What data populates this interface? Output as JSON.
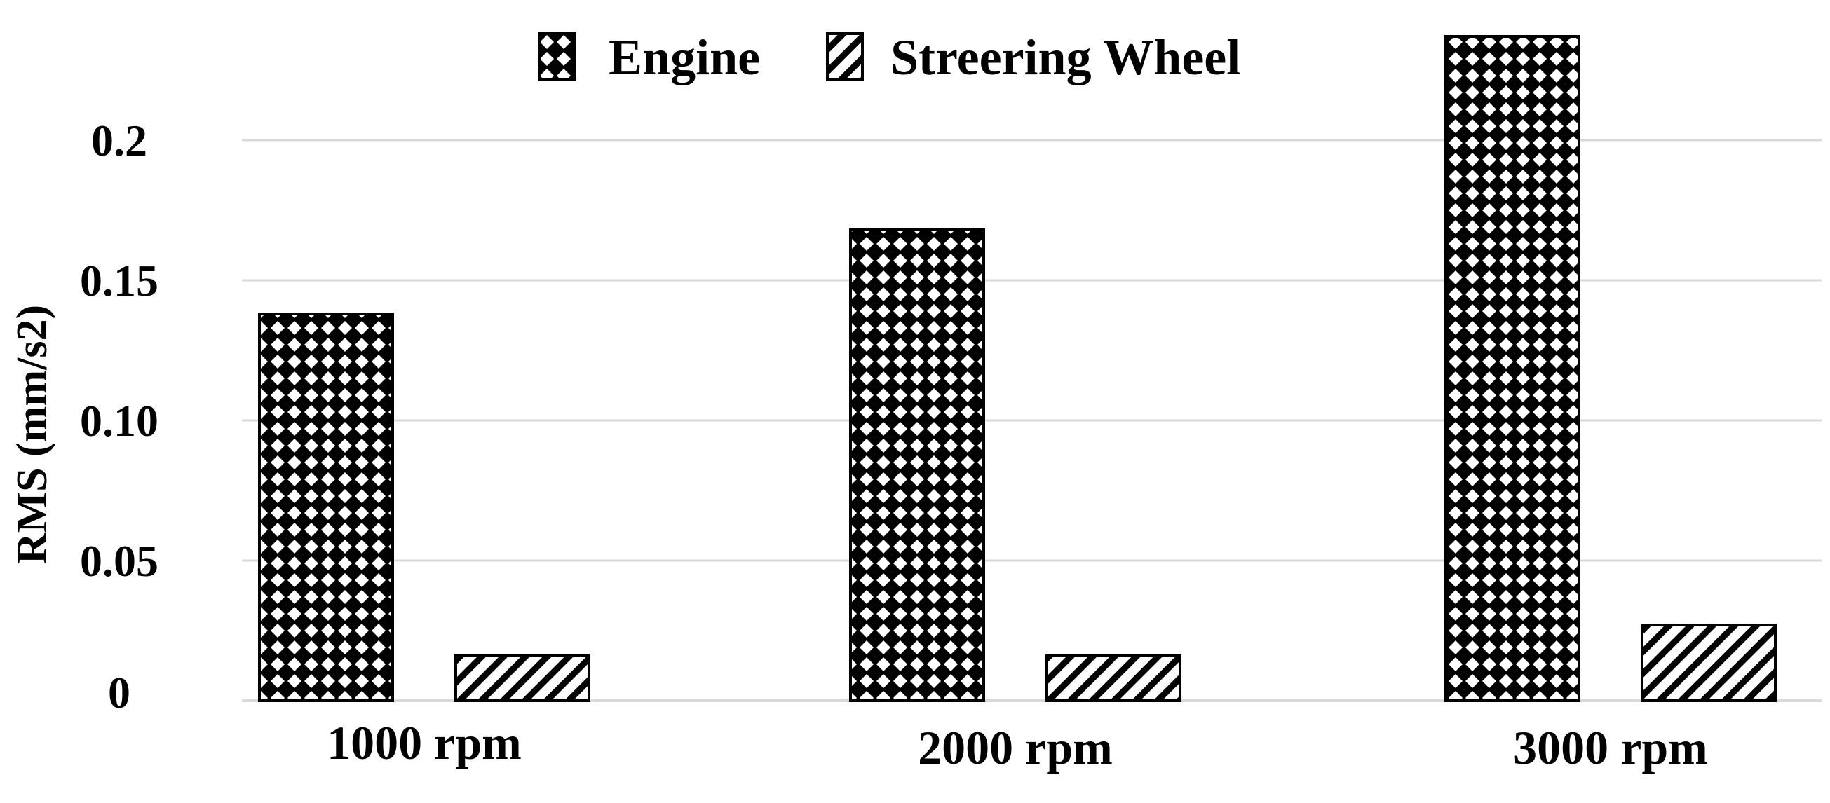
{
  "chart_data": {
    "type": "bar",
    "title": "",
    "xlabel": "",
    "ylabel": "RMS (mm/s2)",
    "categories": [
      "1000 rpm",
      "2000 rpm",
      "3000 rpm"
    ],
    "series": [
      {
        "name": "Engine",
        "values": [
          0.138,
          0.168,
          0.237
        ],
        "pattern": "checker"
      },
      {
        "name": "Streering Wheel",
        "values": [
          0.016,
          0.016,
          0.027
        ],
        "pattern": "diagonal"
      }
    ],
    "yticks": [
      {
        "value": 0,
        "label": "0"
      },
      {
        "value": 0.05,
        "label": "0.05"
      },
      {
        "value": 0.1,
        "label": "0.10"
      },
      {
        "value": 0.15,
        "label": "0.15"
      },
      {
        "value": 0.2,
        "label": "0.2"
      }
    ],
    "ylim": [
      0,
      0.24
    ],
    "grid": true,
    "legend_position": "top-center",
    "colors": {
      "bar_fill": "#ffffff",
      "bar_pattern": "#000000",
      "grid": "#d9d9d9",
      "axis": "#d9d9d9"
    }
  }
}
